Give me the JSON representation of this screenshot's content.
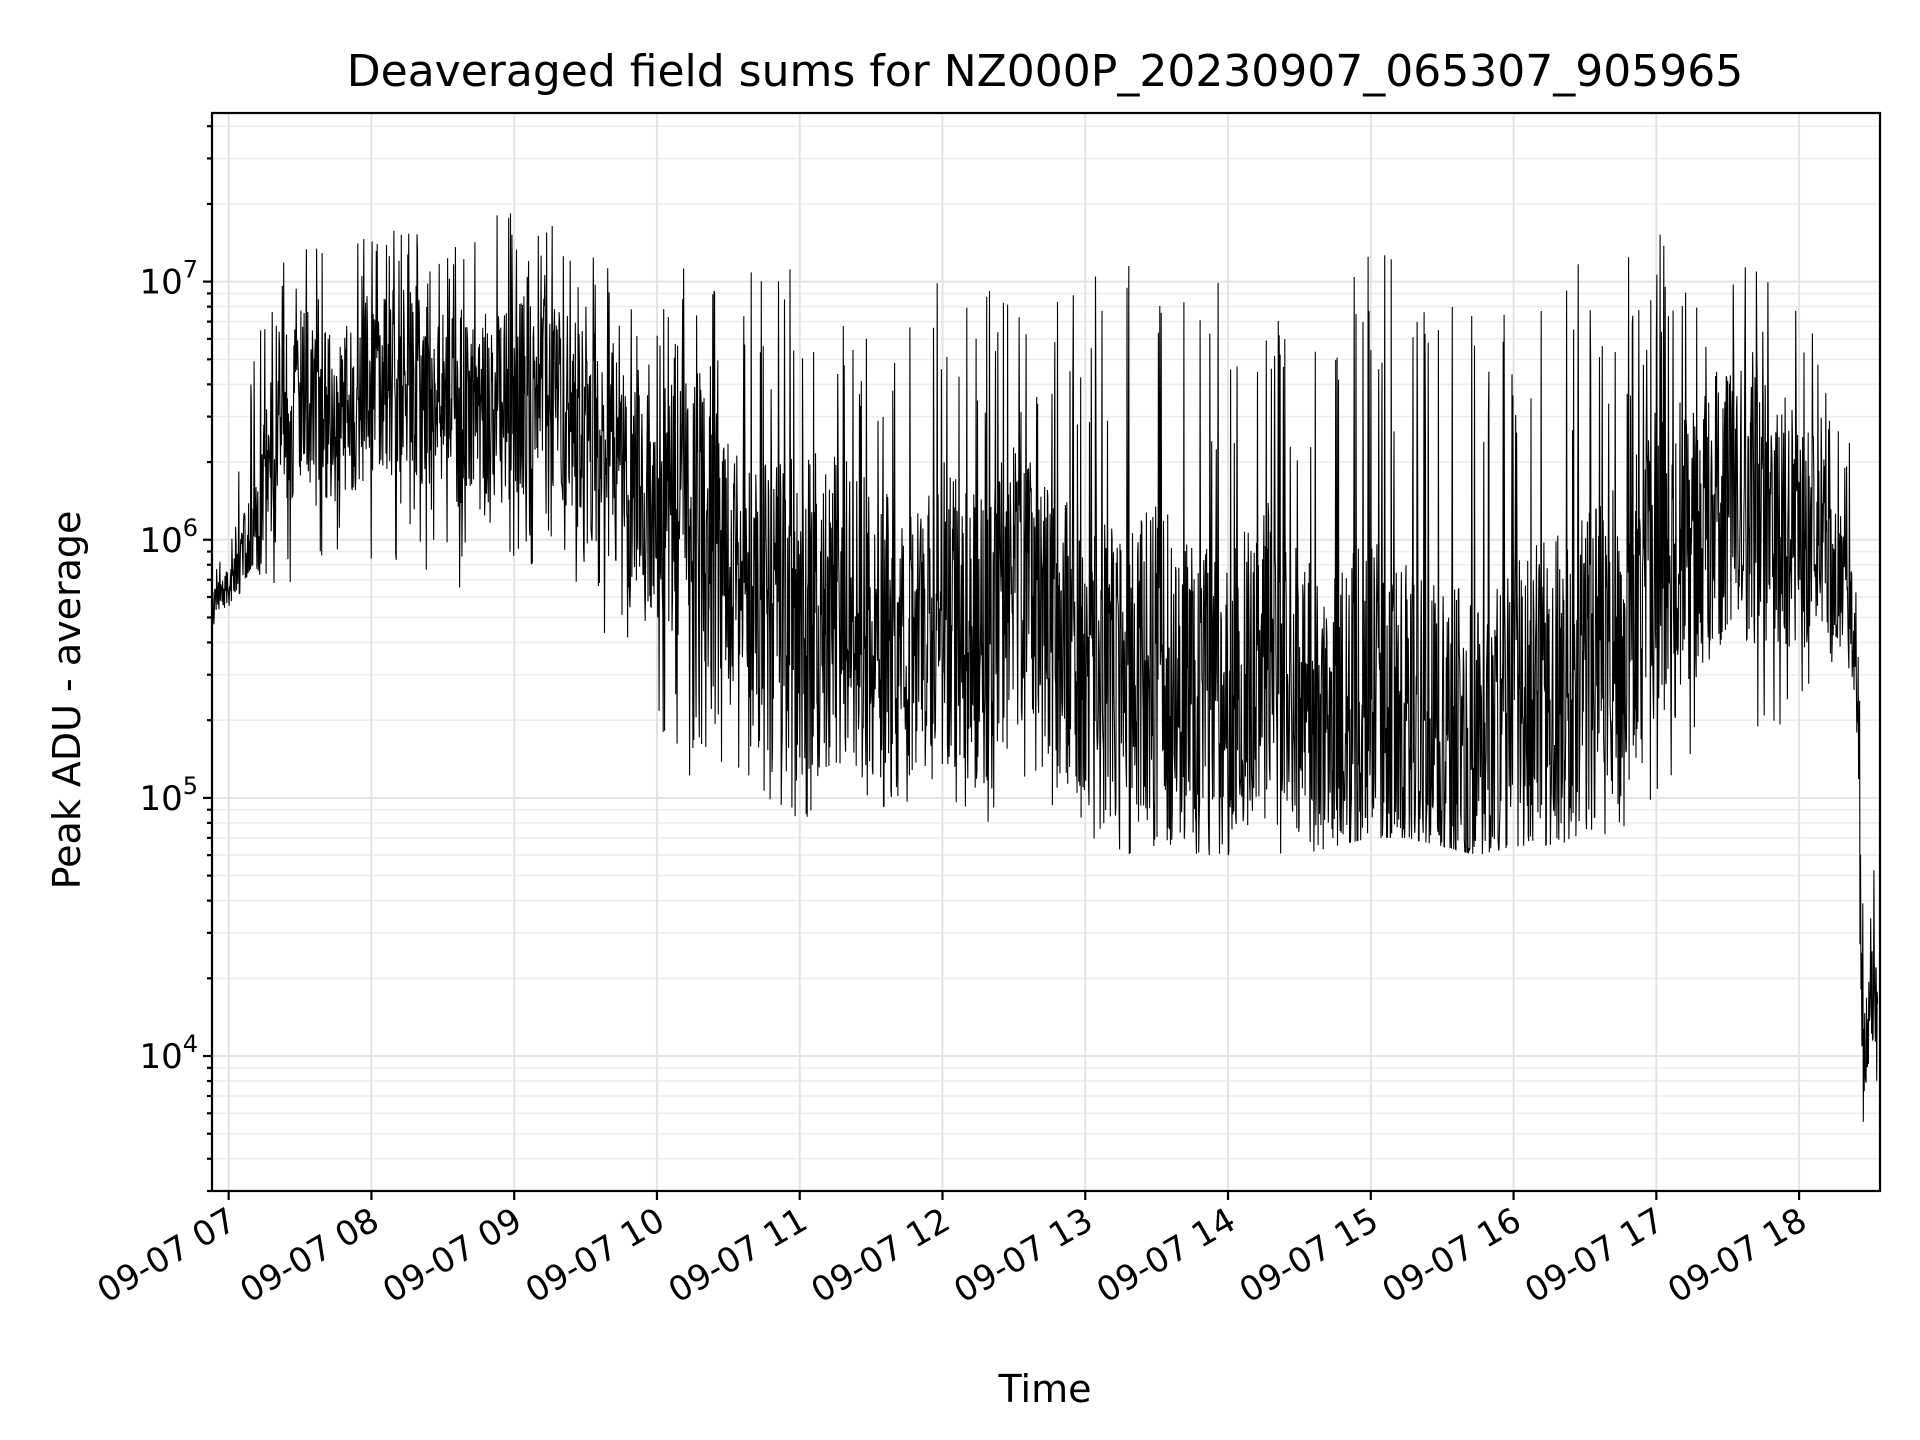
{
  "chart_data": {
    "type": "line",
    "title": "Deaveraged field sums for NZ000P_20230907_065307_905965",
    "xlabel": "Time",
    "ylabel": "Peak ADU - average",
    "yscale": "log",
    "ylim": [
      3000,
      45000000
    ],
    "xlim": [
      "2023-09-07T06:53",
      "2023-09-07T18:34"
    ],
    "grid": true,
    "x_ticks": [
      "09-07 07",
      "09-07 08",
      "09-07 09",
      "09-07 10",
      "09-07 11",
      "09-07 12",
      "09-07 13",
      "09-07 14",
      "09-07 15",
      "09-07 16",
      "09-07 17",
      "09-07 18"
    ],
    "y_ticks": [
      {
        "value": 10000,
        "base": "10",
        "exp": "4"
      },
      {
        "value": 100000,
        "base": "10",
        "exp": "5"
      },
      {
        "value": 1000000,
        "base": "10",
        "exp": "6"
      },
      {
        "value": 10000000,
        "base": "10",
        "exp": "7"
      }
    ],
    "series": [
      {
        "color": "#000000",
        "x": [
          "2023-09-07T06:53",
          "2023-09-07T07:00",
          "2023-09-07T07:10",
          "2023-09-07T07:20",
          "2023-09-07T07:30",
          "2023-09-07T07:45",
          "2023-09-07T08:00",
          "2023-09-07T08:15",
          "2023-09-07T08:30",
          "2023-09-07T08:45",
          "2023-09-07T09:00",
          "2023-09-07T09:15",
          "2023-09-07T09:30",
          "2023-09-07T09:45",
          "2023-09-07T10:00",
          "2023-09-07T10:15",
          "2023-09-07T10:30",
          "2023-09-07T10:45",
          "2023-09-07T11:00",
          "2023-09-07T11:15",
          "2023-09-07T11:30",
          "2023-09-07T11:45",
          "2023-09-07T12:00",
          "2023-09-07T12:15",
          "2023-09-07T12:30",
          "2023-09-07T12:45",
          "2023-09-07T13:00",
          "2023-09-07T13:15",
          "2023-09-07T13:30",
          "2023-09-07T13:45",
          "2023-09-07T14:00",
          "2023-09-07T14:15",
          "2023-09-07T14:30",
          "2023-09-07T14:45",
          "2023-09-07T15:00",
          "2023-09-07T15:15",
          "2023-09-07T15:30",
          "2023-09-07T15:45",
          "2023-09-07T16:00",
          "2023-09-07T16:15",
          "2023-09-07T16:30",
          "2023-09-07T16:45",
          "2023-09-07T17:00",
          "2023-09-07T17:15",
          "2023-09-07T17:30",
          "2023-09-07T17:45",
          "2023-09-07T18:00",
          "2023-09-07T18:10",
          "2023-09-07T18:20",
          "2023-09-07T18:24",
          "2023-09-07T18:27",
          "2023-09-07T18:30",
          "2023-09-07T18:33"
        ],
        "y": [
          600000,
          650000,
          1000000,
          2500000,
          3500000,
          3000000,
          4000000,
          4000000,
          3500000,
          3000000,
          3500000,
          4000000,
          2500000,
          2000000,
          1500000,
          1200000,
          800000,
          500000,
          500000,
          550000,
          450000,
          350000,
          500000,
          400000,
          700000,
          400000,
          350000,
          250000,
          300000,
          250000,
          200000,
          400000,
          250000,
          200000,
          250000,
          200000,
          180000,
          160000,
          250000,
          250000,
          300000,
          400000,
          800000,
          1000000,
          1500000,
          1200000,
          1200000,
          1000000,
          600000,
          400000,
          8000,
          20000,
          12000
        ],
        "y_low": [
          450000,
          500000,
          800000,
          600000,
          700000,
          900000,
          700000,
          800000,
          700000,
          600000,
          800000,
          700000,
          500000,
          300000,
          200000,
          100000,
          90000,
          80000,
          80000,
          75000,
          80000,
          90000,
          80000,
          70000,
          80000,
          90000,
          70000,
          60000,
          60000,
          60000,
          60000,
          60000,
          60000,
          65000,
          70000,
          70000,
          65000,
          60000,
          65000,
          65000,
          70000,
          70000,
          100000,
          150000,
          150000,
          150000,
          200000,
          300000,
          400000,
          150000,
          4500,
          8000,
          8000
        ],
        "y_high": [
          800000,
          900000,
          5000000,
          11000000,
          14000000,
          15000000,
          16000000,
          17000000,
          16000000,
          18000000,
          20000000,
          18000000,
          16000000,
          15000000,
          13000000,
          11000000,
          10000000,
          12000000,
          15000000,
          13000000,
          10000000,
          11000000,
          13000000,
          10000000,
          8000000,
          12000000,
          10000000,
          12000000,
          15000000,
          11000000,
          10000000,
          8000000,
          7000000,
          10000000,
          14000000,
          12000000,
          8000000,
          9000000,
          10000000,
          11000000,
          12000000,
          13000000,
          16000000,
          17000000,
          14000000,
          12000000,
          10000000,
          5000000,
          3000000,
          2000000,
          30000,
          60000,
          50000
        ]
      }
    ]
  }
}
